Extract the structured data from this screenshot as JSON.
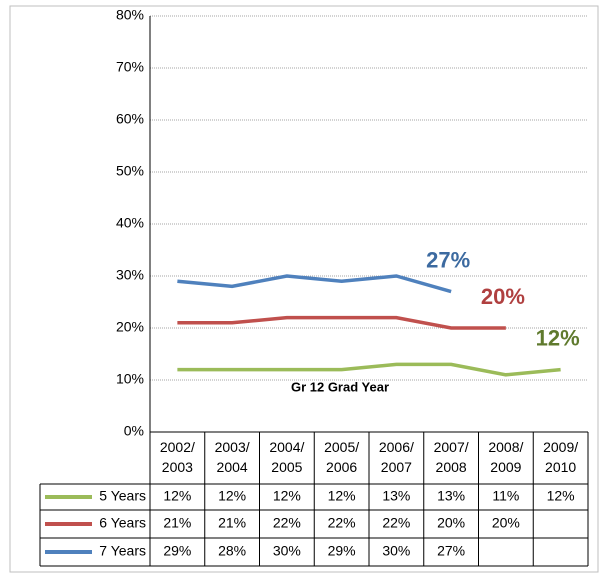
{
  "chart_data": {
    "type": "line",
    "categories": [
      "2002/2003",
      "2003/2004",
      "2004/2005",
      "2005/2006",
      "2006/2007",
      "2007/2008",
      "2008/2009",
      "2009/2010"
    ],
    "x_label": "Gr 12 Grad Year",
    "series": [
      {
        "name": "5 Years",
        "color": "#9bbb59",
        "label_color": "#5f7a2d",
        "values": [
          12,
          12,
          12,
          12,
          13,
          13,
          11,
          12
        ],
        "value_labels": [
          "12%",
          "12%",
          "12%",
          "12%",
          "13%",
          "13%",
          "11%",
          "12%"
        ]
      },
      {
        "name": "6 Years",
        "color": "#c0504d",
        "label_color": "#b04040",
        "values": [
          21,
          21,
          22,
          22,
          22,
          20,
          20,
          null
        ],
        "value_labels": [
          "21%",
          "21%",
          "22%",
          "22%",
          "22%",
          "20%",
          "20%",
          null
        ]
      },
      {
        "name": "7 Years",
        "color": "#4f81bd",
        "label_color": "#3c6aa0",
        "values": [
          29,
          28,
          30,
          29,
          30,
          27,
          null,
          null
        ],
        "value_labels": [
          "29%",
          "28%",
          "30%",
          "29%",
          "30%",
          "27%",
          null,
          null
        ]
      }
    ],
    "ylim": [
      0,
      80
    ],
    "yticks": [
      {
        "value": 0,
        "label": "0%"
      },
      {
        "value": 10,
        "label": "10%"
      },
      {
        "value": 20,
        "label": "20%"
      },
      {
        "value": 30,
        "label": "30%"
      },
      {
        "value": 40,
        "label": "40%"
      },
      {
        "value": 50,
        "label": "50%"
      },
      {
        "value": 60,
        "label": "60%"
      },
      {
        "value": 70,
        "label": "70%"
      },
      {
        "value": 80,
        "label": "80%"
      }
    ],
    "grid": true
  }
}
